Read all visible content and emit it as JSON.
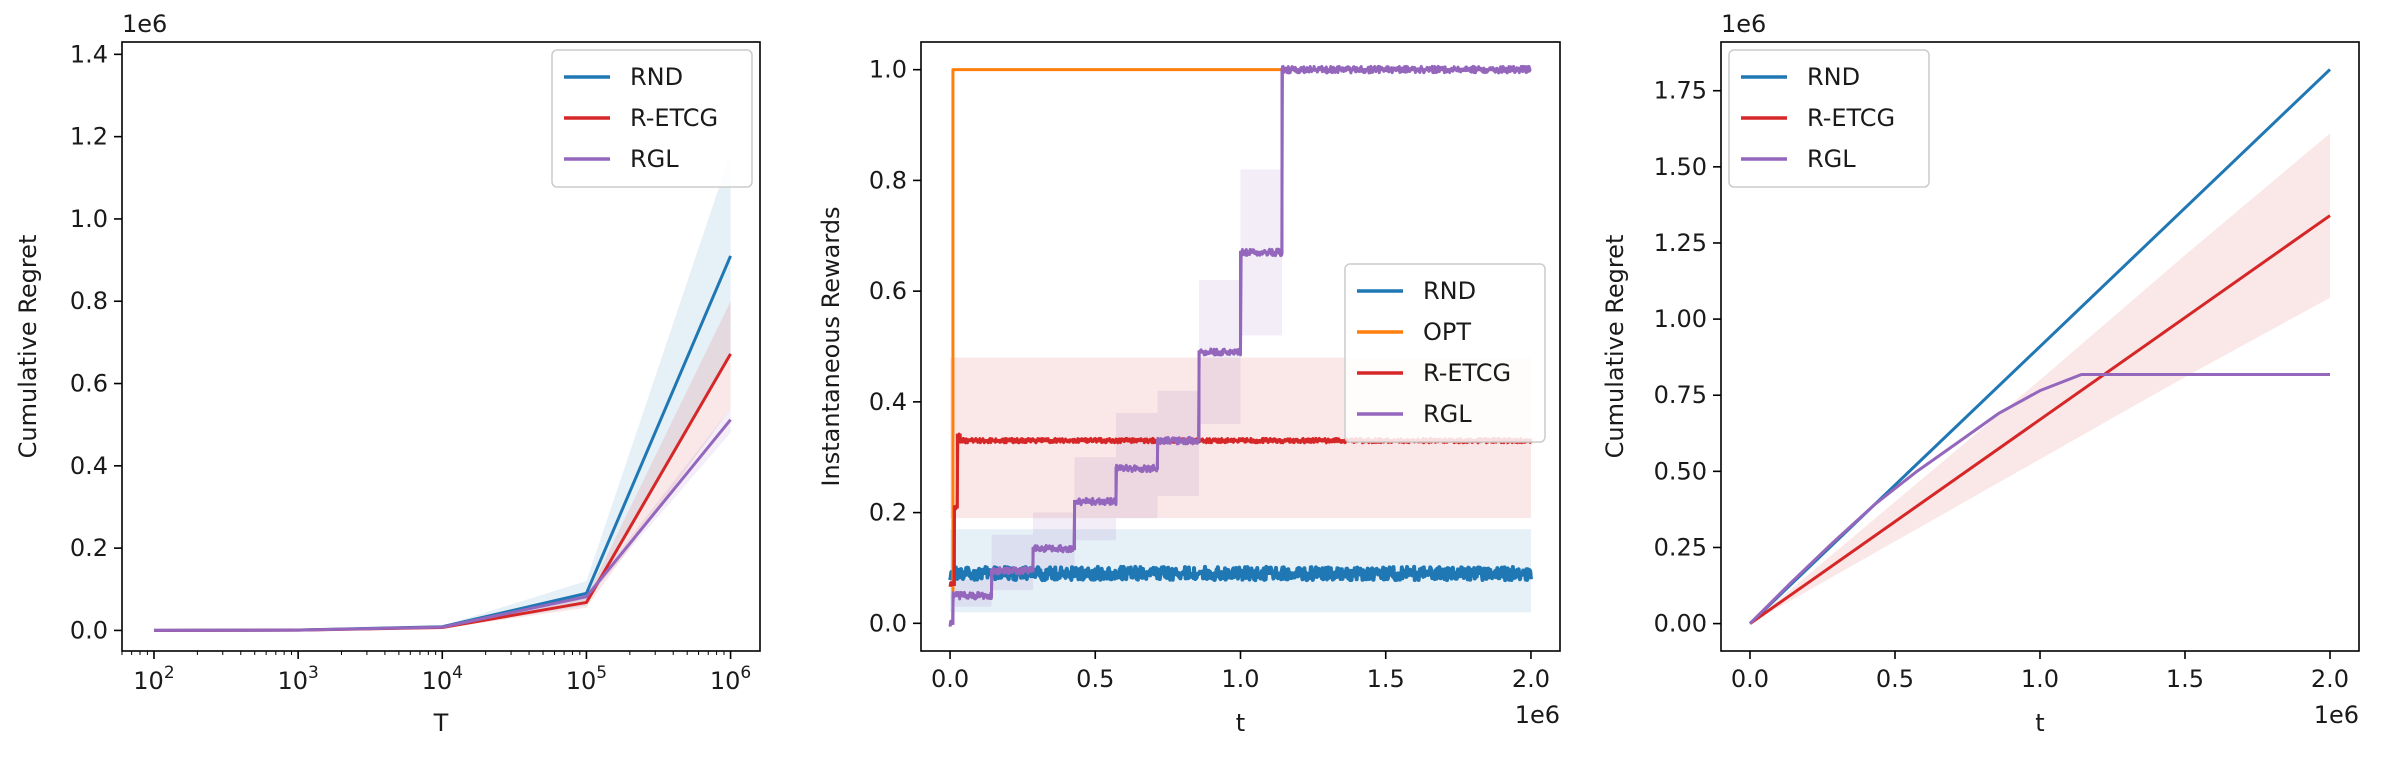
{
  "chart_data": [
    {
      "type": "line",
      "title": "",
      "xlabel": "T",
      "ylabel": "Cumulative Regret",
      "xscale": "log",
      "xlim": [
        60,
        1600000
      ],
      "ylim": [
        -50000,
        1430000
      ],
      "y_offset_text": "1e6",
      "x_offset_text": "",
      "xticks": [
        100,
        1000,
        10000,
        100000,
        1000000
      ],
      "xtick_labels": [
        {
          "base": "10",
          "exp": "2"
        },
        {
          "base": "10",
          "exp": "3"
        },
        {
          "base": "10",
          "exp": "4"
        },
        {
          "base": "10",
          "exp": "5"
        },
        {
          "base": "10",
          "exp": "6"
        }
      ],
      "yticks": [
        0,
        200000,
        400000,
        600000,
        800000,
        1000000,
        1200000,
        1400000
      ],
      "ytick_labels": [
        "0.0",
        "0.2",
        "0.4",
        "0.6",
        "0.8",
        "1.0",
        "1.2",
        "1.4"
      ],
      "legend_position": "top-right",
      "grid": false,
      "series": [
        {
          "name": "RND",
          "color": "#1f77b4",
          "x": [
            100,
            1000,
            10000,
            100000,
            1000000
          ],
          "y": [
            0,
            900,
            9000,
            90000,
            910000
          ],
          "band_lower": [
            0,
            800,
            7000,
            60000,
            670000
          ],
          "band_upper": [
            0,
            1000,
            11000,
            120000,
            1160000
          ]
        },
        {
          "name": "R-ETCG",
          "color": "#d62728",
          "x": [
            100,
            1000,
            10000,
            100000,
            1000000
          ],
          "y": [
            0,
            700,
            7000,
            68000,
            672000
          ],
          "band_lower": [
            0,
            500,
            5000,
            55000,
            540000
          ],
          "band_upper": [
            0,
            900,
            9000,
            80000,
            800000
          ]
        },
        {
          "name": "RGL",
          "color": "#9467bd",
          "x": [
            100,
            1000,
            10000,
            100000,
            1000000
          ],
          "y": [
            0,
            800,
            8000,
            82000,
            512000
          ],
          "band_lower": [
            0,
            700,
            7000,
            75000,
            480000
          ],
          "band_upper": [
            0,
            900,
            9000,
            90000,
            540000
          ]
        }
      ]
    },
    {
      "type": "line",
      "title": "",
      "xlabel": "t",
      "ylabel": "Instantaneous Rewards",
      "xscale": "linear",
      "xlim": [
        -100000,
        2100000
      ],
      "ylim": [
        -0.05,
        1.05
      ],
      "x_offset_text": "1e6",
      "y_offset_text": "",
      "xticks": [
        0,
        500000,
        1000000,
        1500000,
        2000000
      ],
      "xtick_labels": [
        "0.0",
        "0.5",
        "1.0",
        "1.5",
        "2.0"
      ],
      "yticks": [
        0,
        0.2,
        0.4,
        0.6,
        0.8,
        1.0
      ],
      "ytick_labels": [
        "0.0",
        "0.2",
        "0.4",
        "0.6",
        "0.8",
        "1.0"
      ],
      "legend_position": "center-right",
      "grid": false,
      "series": [
        {
          "name": "RND",
          "color": "#1f77b4",
          "x": [
            0,
            2000000
          ],
          "y": [
            0.09,
            0.09
          ],
          "noise": 0.012,
          "band_lower": [
            0.02,
            0.02
          ],
          "band_upper": [
            0.17,
            0.17
          ]
        },
        {
          "name": "OPT",
          "color": "#ff7f0e",
          "x": [
            0,
            10000,
            10000,
            2000000
          ],
          "y": [
            0.0,
            0.0,
            1.0,
            1.0
          ]
        },
        {
          "name": "R-ETCG",
          "color": "#d62728",
          "x": [
            0,
            15000,
            15000,
            25000,
            25000,
            35000,
            35000,
            2000000
          ],
          "y": [
            0.07,
            0.07,
            0.21,
            0.21,
            0.34,
            0.34,
            0.33,
            0.33
          ],
          "noise": 0.004,
          "band_lower": [
            0.19,
            0.19
          ],
          "band_upper": [
            0.48,
            0.48
          ],
          "band_x": [
            0,
            2000000
          ]
        },
        {
          "name": "RGL",
          "color": "#9467bd",
          "x": [
            0,
            10000,
            10000,
            142857,
            142857,
            285714,
            285714,
            428571,
            428571,
            571428,
            571428,
            714285,
            714285,
            857142,
            857142,
            1000000,
            1000000,
            1142857,
            1142857,
            2000000
          ],
          "y": [
            0.0,
            0.0,
            0.05,
            0.05,
            0.095,
            0.095,
            0.135,
            0.135,
            0.22,
            0.22,
            0.28,
            0.28,
            0.33,
            0.33,
            0.49,
            0.49,
            0.67,
            0.67,
            1.0,
            1.0
          ],
          "noise": 0.006,
          "band_steps": [
            {
              "x0": 10000,
              "x1": 142857,
              "lo": 0.03,
              "hi": 0.08
            },
            {
              "x0": 142857,
              "x1": 285714,
              "lo": 0.06,
              "hi": 0.16
            },
            {
              "x0": 285714,
              "x1": 428571,
              "lo": 0.09,
              "hi": 0.2
            },
            {
              "x0": 428571,
              "x1": 571428,
              "lo": 0.15,
              "hi": 0.3
            },
            {
              "x0": 571428,
              "x1": 714285,
              "lo": 0.19,
              "hi": 0.38
            },
            {
              "x0": 714285,
              "x1": 857142,
              "lo": 0.23,
              "hi": 0.42
            },
            {
              "x0": 857142,
              "x1": 1000000,
              "lo": 0.36,
              "hi": 0.62
            },
            {
              "x0": 1000000,
              "x1": 1142857,
              "lo": 0.52,
              "hi": 0.82
            }
          ]
        }
      ]
    },
    {
      "type": "line",
      "title": "",
      "xlabel": "t",
      "ylabel": "Cumulative Regret",
      "xscale": "linear",
      "xlim": [
        -100000,
        2100000
      ],
      "ylim": [
        -90000,
        1910000
      ],
      "y_offset_text": "1e6",
      "x_offset_text": "1e6",
      "xticks": [
        0,
        500000,
        1000000,
        1500000,
        2000000
      ],
      "xtick_labels": [
        "0.0",
        "0.5",
        "1.0",
        "1.5",
        "2.0"
      ],
      "yticks": [
        0,
        250000,
        500000,
        750000,
        1000000,
        1250000,
        1500000,
        1750000
      ],
      "ytick_labels": [
        "0.00",
        "0.25",
        "0.50",
        "0.75",
        "1.00",
        "1.25",
        "1.50",
        "1.75"
      ],
      "legend_position": "top-left",
      "grid": false,
      "series": [
        {
          "name": "RND",
          "color": "#1f77b4",
          "x": [
            0,
            2000000
          ],
          "y": [
            0,
            1820000
          ]
        },
        {
          "name": "R-ETCG",
          "color": "#d62728",
          "x": [
            0,
            500000,
            1000000,
            1500000,
            2000000
          ],
          "y": [
            0,
            335000,
            670000,
            1005000,
            1340000
          ],
          "band_lower": [
            0,
            270000,
            540000,
            810000,
            1070000
          ],
          "band_upper": [
            0,
            400000,
            800000,
            1210000,
            1610000
          ]
        },
        {
          "name": "RGL",
          "color": "#9467bd",
          "x": [
            0,
            142857,
            285714,
            428571,
            571428,
            714285,
            857142,
            1000000,
            1142857,
            2000000
          ],
          "y": [
            0,
            136000,
            266000,
            390000,
            497000,
            593000,
            690000,
            765000,
            818000,
            818000
          ]
        }
      ]
    }
  ]
}
